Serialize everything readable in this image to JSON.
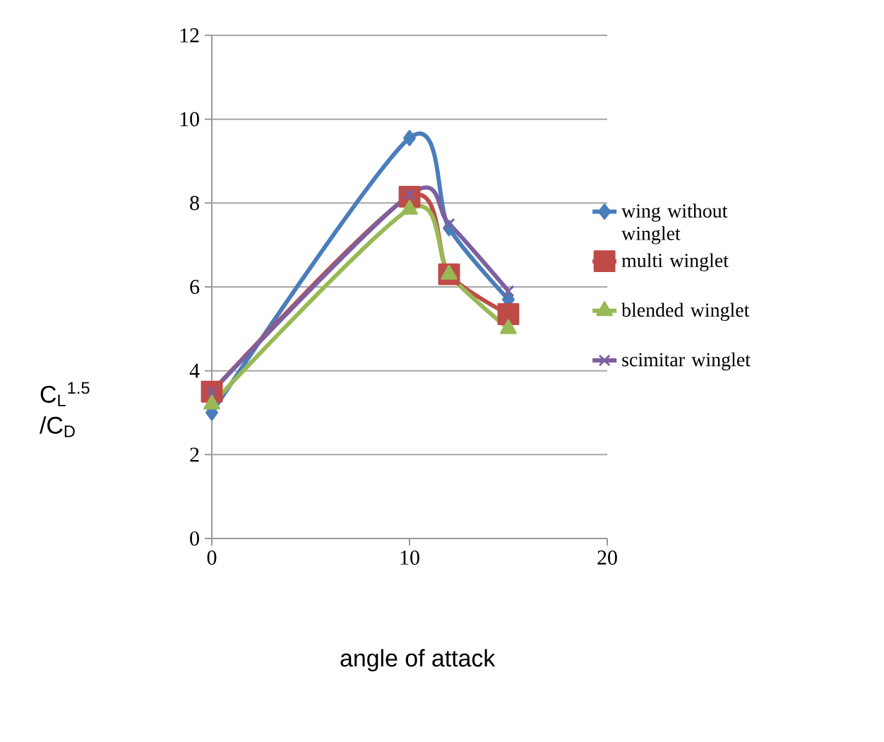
{
  "chart_data": {
    "type": "line",
    "xlabel": "angle of attack",
    "ylabel": "C$_{L}$$^{1.5}$ /C$_{D}$",
    "x": [
      0,
      10,
      12,
      15
    ],
    "xlim": [
      0,
      20
    ],
    "xticks": [
      0,
      10,
      20
    ],
    "ylim": [
      0,
      12
    ],
    "yticks": [
      0,
      2,
      4,
      6,
      8,
      10,
      12
    ],
    "grid": "y",
    "legend": "right",
    "series": [
      {
        "name": "wing without winglet",
        "color": "#4a7ebb",
        "marker": "diamond",
        "values": [
          3.0,
          9.55,
          7.4,
          5.7
        ]
      },
      {
        "name": "multi winglet",
        "color": "#be4b48",
        "marker": "square",
        "values": [
          3.5,
          8.15,
          6.3,
          5.35
        ]
      },
      {
        "name": "blended winglet",
        "color": "#98b954",
        "marker": "triangle",
        "values": [
          3.2,
          7.85,
          6.3,
          5.0
        ]
      },
      {
        "name": "scimitar winglet",
        "color": "#7d60a0",
        "marker": "cross",
        "values": [
          3.5,
          8.2,
          7.5,
          5.9
        ]
      }
    ]
  }
}
